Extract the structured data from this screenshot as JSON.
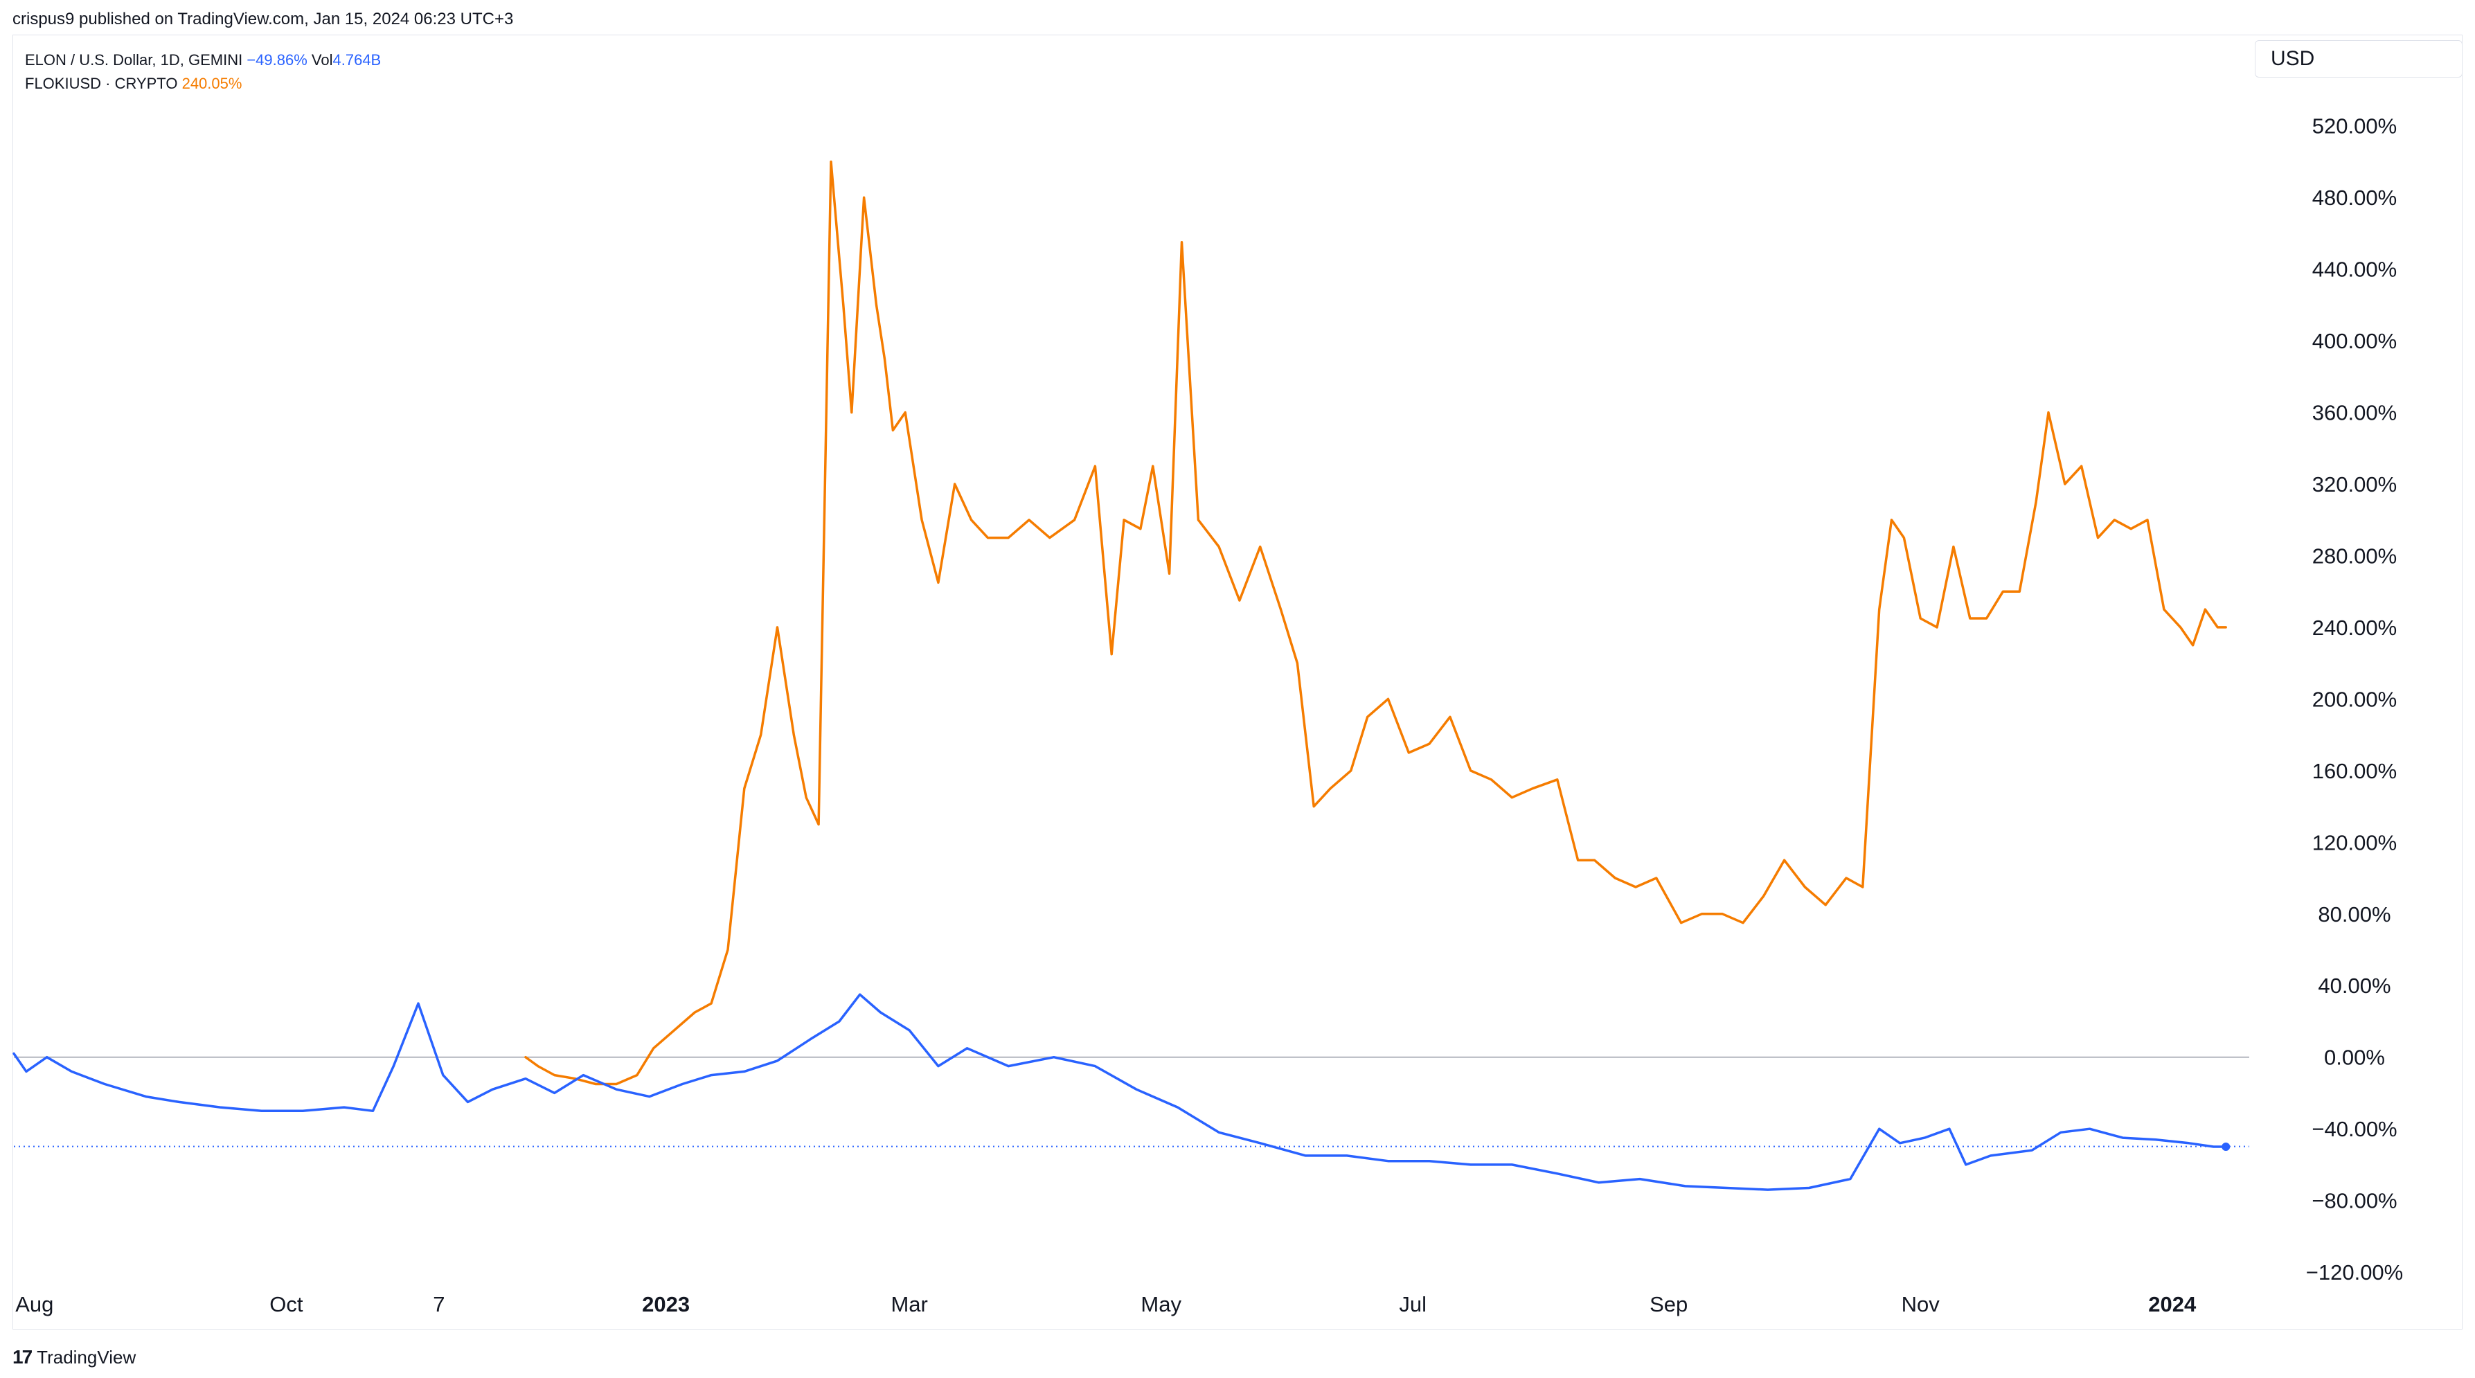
{
  "publisher_line": "crispus9 published on TradingView.com, Jan 15, 2024 06:23 UTC+3",
  "legend": {
    "elon_name": "ELON / U.S. Dollar, 1D, GEMINI",
    "elon_change": "−49.86%",
    "elon_vol_label": "Vol",
    "elon_vol_value": "4.764B",
    "floki_name": "FLOKIUSD · CRYPTO",
    "floki_change": "240.05%"
  },
  "currency_label": "USD",
  "brand": {
    "logo_icon": "tradingview-logo-icon",
    "logo_glyph": "17",
    "name": "TradingView"
  },
  "chart_data": {
    "type": "line",
    "y_unit": "%",
    "ylim": [
      -120,
      540
    ],
    "y_ticks": [
      "520.00%",
      "480.00%",
      "440.00%",
      "400.00%",
      "360.00%",
      "320.00%",
      "280.00%",
      "240.00%",
      "200.00%",
      "160.00%",
      "120.00%",
      "80.00%",
      "40.00%",
      "0.00%",
      "−40.00%",
      "−80.00%",
      "−120.00%"
    ],
    "y_tick_values": [
      520,
      480,
      440,
      400,
      360,
      320,
      280,
      240,
      200,
      160,
      120,
      80,
      40,
      0,
      -40,
      -80,
      -120
    ],
    "x_range": [
      "2022-07-27",
      "2024-01-20"
    ],
    "x_ticks": [
      {
        "label": "Aug",
        "date": "2022-08-01",
        "bold": false
      },
      {
        "label": "Oct",
        "date": "2022-10-01",
        "bold": false
      },
      {
        "label": "7",
        "date": "2022-11-07",
        "bold": false
      },
      {
        "label": "2023",
        "date": "2023-01-01",
        "bold": true
      },
      {
        "label": "Mar",
        "date": "2023-03-01",
        "bold": false
      },
      {
        "label": "May",
        "date": "2023-05-01",
        "bold": false
      },
      {
        "label": "Jul",
        "date": "2023-07-01",
        "bold": false
      },
      {
        "label": "Sep",
        "date": "2023-09-01",
        "bold": false
      },
      {
        "label": "Nov",
        "date": "2023-11-01",
        "bold": false
      },
      {
        "label": "2024",
        "date": "2024-01-01",
        "bold": true
      }
    ],
    "zero_line": 0,
    "last_value_line": -49.86,
    "grid": false,
    "legend_position": "top-left",
    "colors": {
      "elon": "#2962ff",
      "floki": "#f57c00",
      "zero_line": "#b2b5be"
    },
    "series": [
      {
        "name": "ELON / U.S. Dollar",
        "color": "#2962ff",
        "x": [
          "2022-07-27",
          "2022-07-30",
          "2022-08-04",
          "2022-08-10",
          "2022-08-18",
          "2022-08-28",
          "2022-09-05",
          "2022-09-15",
          "2022-09-25",
          "2022-10-05",
          "2022-10-15",
          "2022-10-22",
          "2022-10-27",
          "2022-11-02",
          "2022-11-08",
          "2022-11-14",
          "2022-11-20",
          "2022-11-28",
          "2022-12-05",
          "2022-12-12",
          "2022-12-20",
          "2022-12-28",
          "2023-01-05",
          "2023-01-12",
          "2023-01-20",
          "2023-01-28",
          "2023-02-05",
          "2023-02-12",
          "2023-02-17",
          "2023-02-22",
          "2023-03-01",
          "2023-03-08",
          "2023-03-15",
          "2023-03-25",
          "2023-04-05",
          "2023-04-15",
          "2023-04-25",
          "2023-05-05",
          "2023-05-15",
          "2023-05-25",
          "2023-06-05",
          "2023-06-15",
          "2023-06-25",
          "2023-07-05",
          "2023-07-15",
          "2023-07-25",
          "2023-08-05",
          "2023-08-15",
          "2023-08-25",
          "2023-09-05",
          "2023-09-15",
          "2023-09-25",
          "2023-10-05",
          "2023-10-15",
          "2023-10-22",
          "2023-10-27",
          "2023-11-02",
          "2023-11-08",
          "2023-11-12",
          "2023-11-18",
          "2023-11-28",
          "2023-12-05",
          "2023-12-12",
          "2023-12-20",
          "2023-12-28",
          "2024-01-05",
          "2024-01-11",
          "2024-01-14"
        ],
        "values": [
          2,
          -8,
          0,
          -8,
          -15,
          -22,
          -25,
          -28,
          -30,
          -30,
          -28,
          -30,
          -5,
          30,
          -10,
          -25,
          -18,
          -12,
          -20,
          -10,
          -18,
          -22,
          -15,
          -10,
          -8,
          -2,
          10,
          20,
          35,
          25,
          15,
          -5,
          5,
          -5,
          0,
          -5,
          -18,
          -28,
          -42,
          -48,
          -55,
          -55,
          -58,
          -58,
          -60,
          -60,
          -65,
          -70,
          -68,
          -72,
          -73,
          -74,
          -73,
          -68,
          -40,
          -48,
          -45,
          -40,
          -60,
          -55,
          -52,
          -42,
          -40,
          -45,
          -46,
          -48,
          -50,
          -50
        ]
      },
      {
        "name": "FLOKIUSD · CRYPTO",
        "color": "#f57c00",
        "x": [
          "2022-11-28",
          "2022-12-01",
          "2022-12-05",
          "2022-12-10",
          "2022-12-15",
          "2022-12-20",
          "2022-12-25",
          "2022-12-29",
          "2023-01-03",
          "2023-01-08",
          "2023-01-12",
          "2023-01-16",
          "2023-01-20",
          "2023-01-24",
          "2023-01-28",
          "2023-02-01",
          "2023-02-04",
          "2023-02-07",
          "2023-02-10",
          "2023-02-13",
          "2023-02-15",
          "2023-02-18",
          "2023-02-21",
          "2023-02-23",
          "2023-02-25",
          "2023-02-28",
          "2023-03-04",
          "2023-03-08",
          "2023-03-12",
          "2023-03-16",
          "2023-03-20",
          "2023-03-25",
          "2023-03-30",
          "2023-04-04",
          "2023-04-10",
          "2023-04-15",
          "2023-04-19",
          "2023-04-22",
          "2023-04-26",
          "2023-04-29",
          "2023-05-03",
          "2023-05-06",
          "2023-05-10",
          "2023-05-15",
          "2023-05-20",
          "2023-05-25",
          "2023-05-30",
          "2023-06-03",
          "2023-06-07",
          "2023-06-11",
          "2023-06-16",
          "2023-06-20",
          "2023-06-25",
          "2023-06-30",
          "2023-07-05",
          "2023-07-10",
          "2023-07-15",
          "2023-07-20",
          "2023-07-25",
          "2023-07-30",
          "2023-08-05",
          "2023-08-10",
          "2023-08-14",
          "2023-08-19",
          "2023-08-24",
          "2023-08-29",
          "2023-09-04",
          "2023-09-09",
          "2023-09-14",
          "2023-09-19",
          "2023-09-24",
          "2023-09-29",
          "2023-10-04",
          "2023-10-09",
          "2023-10-14",
          "2023-10-18",
          "2023-10-22",
          "2023-10-25",
          "2023-10-28",
          "2023-11-01",
          "2023-11-05",
          "2023-11-09",
          "2023-11-13",
          "2023-11-17",
          "2023-11-21",
          "2023-11-25",
          "2023-11-29",
          "2023-12-02",
          "2023-12-06",
          "2023-12-10",
          "2023-12-14",
          "2023-12-18",
          "2023-12-22",
          "2023-12-26",
          "2023-12-30",
          "2024-01-03",
          "2024-01-06",
          "2024-01-09",
          "2024-01-12",
          "2024-01-14"
        ],
        "values": [
          0,
          -5,
          -10,
          -12,
          -15,
          -15,
          -10,
          5,
          15,
          25,
          30,
          60,
          150,
          180,
          240,
          180,
          145,
          130,
          500,
          420,
          360,
          480,
          420,
          390,
          350,
          360,
          300,
          265,
          320,
          300,
          290,
          290,
          300,
          290,
          300,
          330,
          225,
          300,
          295,
          330,
          270,
          455,
          300,
          285,
          255,
          285,
          250,
          220,
          140,
          150,
          160,
          190,
          200,
          170,
          175,
          190,
          160,
          155,
          145,
          150,
          155,
          110,
          110,
          100,
          95,
          100,
          75,
          80,
          80,
          75,
          90,
          110,
          95,
          85,
          100,
          95,
          250,
          300,
          290,
          245,
          240,
          285,
          245,
          245,
          260,
          260,
          310,
          360,
          320,
          330,
          290,
          300,
          295,
          300,
          250,
          240,
          230,
          250,
          240,
          240
        ]
      }
    ]
  }
}
